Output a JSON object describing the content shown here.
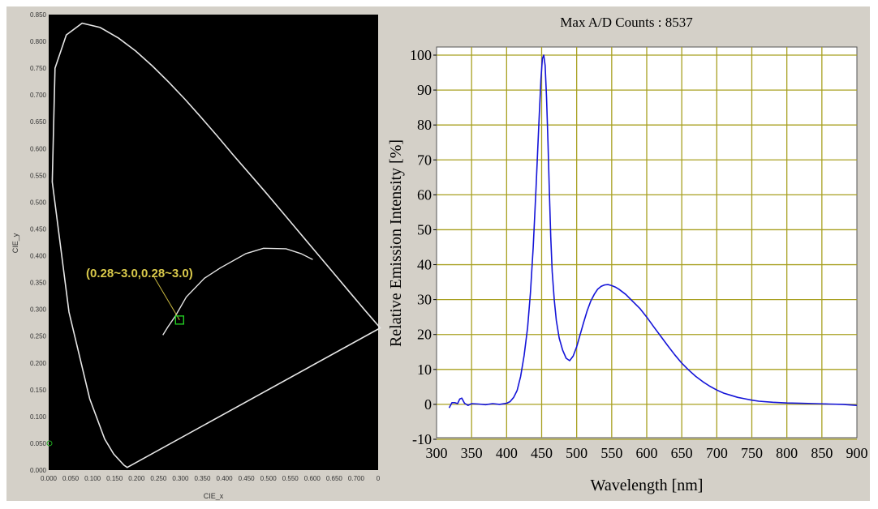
{
  "chart_data": [
    {
      "type": "scatter",
      "xlabel": "CIE_x",
      "ylabel": "CIE_y",
      "xlim": [
        0,
        0.73
      ],
      "ylim": [
        0,
        0.85
      ],
      "x_ticks": [
        "0.000",
        "0.050",
        "0.100",
        "0.150",
        "0.200",
        "0.250",
        "0.300",
        "0.350",
        "0.400",
        "0.450",
        "0.500",
        "0.550",
        "0.600",
        "0.650",
        "0.700",
        "0"
      ],
      "y_ticks": [
        "0.000",
        "0.050",
        "0.100",
        "0.150",
        "0.200",
        "0.250",
        "0.300",
        "0.350",
        "0.400",
        "0.450",
        "0.500",
        "0.550",
        "0.600",
        "0.650",
        "0.700",
        "0.750",
        "0.800",
        "0.850"
      ],
      "annotation": "(0.28~3.0,0.28~3.0)",
      "marker_point": {
        "x": 0.29,
        "y": 0.28
      },
      "spectral_locus": [
        [
          0.174,
          0.005
        ],
        [
          0.167,
          0.009
        ],
        [
          0.144,
          0.03
        ],
        [
          0.124,
          0.058
        ],
        [
          0.091,
          0.133
        ],
        [
          0.045,
          0.295
        ],
        [
          0.008,
          0.538
        ],
        [
          0.014,
          0.75
        ],
        [
          0.039,
          0.812
        ],
        [
          0.074,
          0.834
        ],
        [
          0.114,
          0.826
        ],
        [
          0.155,
          0.806
        ],
        [
          0.193,
          0.782
        ],
        [
          0.23,
          0.754
        ],
        [
          0.266,
          0.724
        ],
        [
          0.302,
          0.692
        ],
        [
          0.337,
          0.659
        ],
        [
          0.373,
          0.624
        ],
        [
          0.408,
          0.589
        ],
        [
          0.444,
          0.554
        ],
        [
          0.479,
          0.52
        ],
        [
          0.512,
          0.487
        ],
        [
          0.547,
          0.452
        ],
        [
          0.575,
          0.424
        ],
        [
          0.627,
          0.372
        ],
        [
          0.665,
          0.334
        ],
        [
          0.7,
          0.299
        ],
        [
          0.7347,
          0.2653
        ]
      ],
      "planckian_locus": [
        [
          0.253,
          0.252
        ],
        [
          0.264,
          0.267
        ],
        [
          0.281,
          0.288
        ],
        [
          0.305,
          0.323
        ],
        [
          0.345,
          0.358
        ],
        [
          0.38,
          0.377
        ],
        [
          0.437,
          0.404
        ],
        [
          0.476,
          0.414
        ],
        [
          0.526,
          0.413
        ],
        [
          0.559,
          0.404
        ],
        [
          0.585,
          0.393
        ]
      ],
      "grid": false,
      "background": "#000000",
      "curve_color": "#e6e6e6"
    },
    {
      "type": "line",
      "title": "Max A/D Counts : 8537",
      "xlabel": "Wavelength [nm]",
      "ylabel": "Relative Emission Intensity [%]",
      "xlim": [
        300,
        900
      ],
      "ylim": [
        -10,
        100
      ],
      "x_ticks": [
        300,
        350,
        400,
        450,
        500,
        550,
        600,
        650,
        700,
        750,
        800,
        850,
        900
      ],
      "y_ticks": [
        -10,
        0,
        10,
        20,
        30,
        40,
        50,
        60,
        70,
        80,
        90,
        100
      ],
      "grid": true,
      "grid_color": "#a8a020",
      "series": [
        {
          "color": "#1414d8",
          "x": [
            318,
            322,
            326,
            330,
            333,
            336,
            340,
            345,
            350,
            360,
            370,
            380,
            390,
            400,
            405,
            410,
            415,
            420,
            425,
            430,
            434,
            438,
            442,
            446,
            449,
            451,
            453,
            455,
            457,
            459,
            461,
            463,
            465,
            468,
            471,
            475,
            480,
            485,
            490,
            495,
            500,
            505,
            510,
            515,
            520,
            525,
            530,
            535,
            540,
            545,
            550,
            555,
            560,
            570,
            580,
            590,
            600,
            610,
            620,
            630,
            640,
            650,
            660,
            670,
            680,
            690,
            700,
            710,
            720,
            730,
            740,
            750,
            760,
            780,
            800,
            820,
            840,
            860,
            880,
            900
          ],
          "y": [
            -1,
            0.5,
            0.5,
            0.2,
            1.5,
            1.8,
            0.3,
            -0.3,
            0.2,
            0.1,
            -0.1,
            0.2,
            0.0,
            0.3,
            0.8,
            2,
            4,
            8,
            14,
            22,
            32,
            45,
            62,
            80,
            93,
            99,
            100,
            97,
            88,
            75,
            61,
            48,
            38,
            30,
            24,
            19,
            15.5,
            13.2,
            12.5,
            13.8,
            16.5,
            20,
            23.5,
            26.8,
            29.5,
            31.5,
            33,
            33.8,
            34.2,
            34.3,
            34,
            33.6,
            33,
            31.5,
            29.5,
            27.5,
            25,
            22.2,
            19.5,
            16.8,
            14.2,
            11.8,
            9.8,
            8,
            6.5,
            5.2,
            4.1,
            3.2,
            2.6,
            2.0,
            1.6,
            1.2,
            0.9,
            0.6,
            0.4,
            0.3,
            0.2,
            0.1,
            0.0,
            -0.3
          ]
        }
      ]
    }
  ]
}
